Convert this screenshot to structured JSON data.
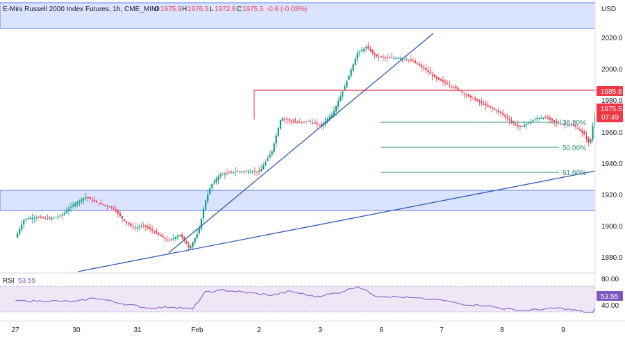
{
  "header": {
    "symbol": "E-Mini Russell 2000 Index Futures, 1h, CME_MINI",
    "open_label": "O",
    "open": "1975.9",
    "high_label": "H",
    "high": "1976.5",
    "low_label": "L",
    "low": "1972.8",
    "close_label": "C",
    "close": "1975.5",
    "change": "-0.6 (-0.03%)"
  },
  "price_axis": {
    "currency": "USD",
    "ticks": [
      "2020.0",
      "2000.0",
      "1980.0",
      "1960.0",
      "1940.0",
      "1920.0",
      "1900.0",
      "1880.0"
    ],
    "level_label": "1985.8",
    "last_price": "1975.5",
    "countdown": "07:49"
  },
  "time_axis": {
    "labels": [
      "27",
      "30",
      "31",
      "Feb",
      "2",
      "3",
      "6",
      "7",
      "8",
      "9"
    ]
  },
  "fib_levels": [
    {
      "label": "38.20%",
      "price": 1966
    },
    {
      "label": "50.00%",
      "price": 1958
    },
    {
      "label": "61.80%",
      "price": 1934
    }
  ],
  "rsi": {
    "label": "RSI",
    "value": "53.55",
    "ticks": [
      "80.00",
      "40.00"
    ],
    "line_color": "#7e57c2"
  },
  "colors": {
    "up": "#089981",
    "down": "#f23645",
    "zone": "#d9e3ff",
    "zone_border": "#5b7ce8",
    "trend": "#2d5bb5",
    "resistance": "#e0304a",
    "fib": "#2f8f7f"
  },
  "chart_data": {
    "type": "candlestick",
    "title": "E-Mini Russell 2000 Index Futures, 1h, CME_MINI",
    "ylim": [
      1870,
      2030
    ],
    "supply_zone": [
      2024.5,
      2034
    ],
    "demand_zone": [
      1909.5,
      1922.5
    ],
    "resistance_level": 1985.8,
    "x_ticks": [
      "27",
      "30",
      "31",
      "Feb",
      "2",
      "3",
      "6",
      "7",
      "8",
      "9"
    ],
    "close_path": [
      [
        0,
        1893
      ],
      [
        0.15,
        1905
      ],
      [
        0.35,
        1906
      ],
      [
        0.55,
        1905
      ],
      [
        0.75,
        1907
      ],
      [
        0.95,
        1914
      ],
      [
        1.15,
        1919
      ],
      [
        1.35,
        1915
      ],
      [
        1.6,
        1912
      ],
      [
        1.8,
        1903
      ],
      [
        1.95,
        1899
      ],
      [
        2.1,
        1901
      ],
      [
        2.3,
        1896
      ],
      [
        2.5,
        1891
      ],
      [
        2.7,
        1895
      ],
      [
        2.85,
        1886
      ],
      [
        3.0,
        1897
      ],
      [
        3.1,
        1915
      ],
      [
        3.2,
        1926
      ],
      [
        3.35,
        1933
      ],
      [
        3.6,
        1935
      ],
      [
        3.85,
        1935
      ],
      [
        4.0,
        1935
      ],
      [
        4.2,
        1948
      ],
      [
        4.35,
        1969
      ],
      [
        4.6,
        1966
      ],
      [
        4.8,
        1967
      ],
      [
        5.0,
        1964
      ],
      [
        5.2,
        1972
      ],
      [
        5.4,
        1990
      ],
      [
        5.6,
        2010
      ],
      [
        5.75,
        2014
      ],
      [
        5.9,
        2008
      ],
      [
        6.1,
        2007
      ],
      [
        6.3,
        2007
      ],
      [
        6.5,
        2005
      ],
      [
        6.7,
        2000
      ],
      [
        6.85,
        1995
      ],
      [
        7.0,
        1992
      ],
      [
        7.2,
        1988
      ],
      [
        7.4,
        1983
      ],
      [
        7.6,
        1979
      ],
      [
        7.8,
        1975
      ],
      [
        7.95,
        1972
      ],
      [
        8.1,
        1967
      ],
      [
        8.25,
        1963
      ],
      [
        8.4,
        1966
      ],
      [
        8.55,
        1969
      ],
      [
        8.7,
        1969
      ],
      [
        8.85,
        1966
      ],
      [
        9.0,
        1965
      ],
      [
        9.15,
        1964
      ],
      [
        9.3,
        1959
      ],
      [
        9.4,
        1952
      ],
      [
        9.5,
        1975
      ],
      [
        9.6,
        1977
      ],
      [
        9.75,
        1978
      ],
      [
        9.9,
        1977
      ],
      [
        10.05,
        1975.5
      ]
    ],
    "rsi_path": [
      [
        0,
        57
      ],
      [
        0.5,
        57
      ],
      [
        1.0,
        56
      ],
      [
        1.3,
        62
      ],
      [
        1.8,
        52
      ],
      [
        2.2,
        46
      ],
      [
        2.6,
        48
      ],
      [
        2.9,
        44
      ],
      [
        3.1,
        70
      ],
      [
        3.4,
        74
      ],
      [
        3.8,
        70
      ],
      [
        4.2,
        66
      ],
      [
        4.5,
        72
      ],
      [
        4.9,
        64
      ],
      [
        5.3,
        70
      ],
      [
        5.6,
        80
      ],
      [
        5.9,
        65
      ],
      [
        6.3,
        63
      ],
      [
        6.7,
        60
      ],
      [
        7.0,
        58
      ],
      [
        7.3,
        52
      ],
      [
        7.7,
        50
      ],
      [
        8.0,
        45
      ],
      [
        8.3,
        42
      ],
      [
        8.6,
        44
      ],
      [
        8.9,
        46
      ],
      [
        9.2,
        42
      ],
      [
        9.45,
        38
      ],
      [
        9.55,
        58
      ],
      [
        9.7,
        56
      ],
      [
        10.05,
        53.55
      ]
    ]
  }
}
